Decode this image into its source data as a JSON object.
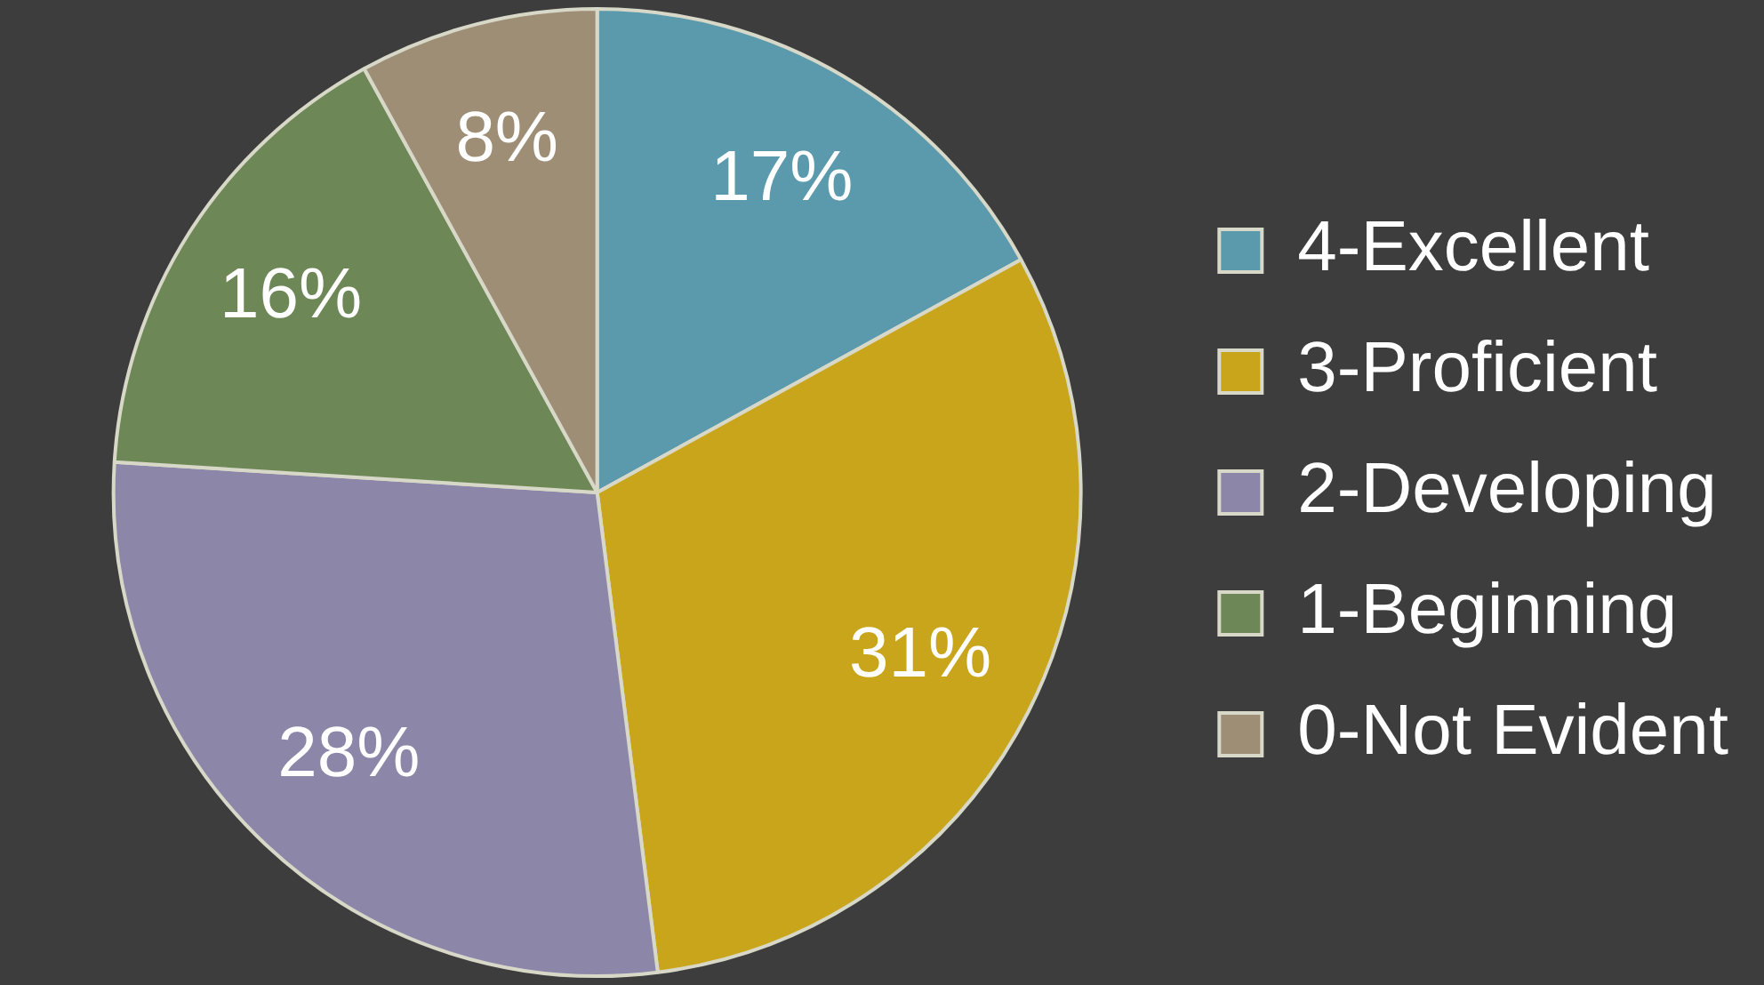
{
  "chart_data": {
    "type": "pie",
    "categories": [
      "4-Excellent",
      "3-Proficient",
      "2-Developing",
      "1-Beginning",
      "0-Not Evident"
    ],
    "values": [
      17,
      31,
      28,
      16,
      8
    ],
    "colors": [
      "#5b9aad",
      "#c9a51c",
      "#8c87a8",
      "#6e8756",
      "#9e8e76"
    ],
    "value_labels": [
      "17%",
      "31%",
      "28%",
      "16%",
      "8%"
    ],
    "legend": "right"
  }
}
